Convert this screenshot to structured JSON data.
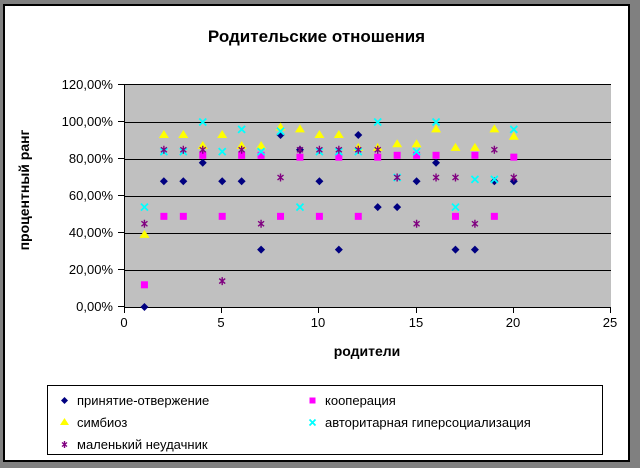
{
  "chart_data": {
    "type": "scatter",
    "title": "Родительские отношения",
    "xlabel": "родители",
    "ylabel": "процентный ранг",
    "xlim": [
      0,
      25
    ],
    "ylim_percent": [
      0,
      120
    ],
    "grid": true,
    "legend_position": "bottom",
    "plot_bg_color": "#C0C0C0",
    "x_ticks": [
      "0",
      "5",
      "10",
      "15",
      "20",
      "25"
    ],
    "y_ticks": [
      "120,00%",
      "100,00%",
      "80,00%",
      "60,00%",
      "40,00%",
      "20,00%",
      "0,00%"
    ],
    "x": [
      1,
      2,
      3,
      4,
      5,
      6,
      7,
      8,
      9,
      10,
      11,
      12,
      13,
      14,
      15,
      16,
      17,
      18,
      19,
      20
    ],
    "series": [
      {
        "name": "принятие-отвержение",
        "marker": "diamond",
        "color": "#000080",
        "values_percent": [
          0,
          68,
          68,
          78,
          68,
          68,
          31,
          93,
          85,
          68,
          31,
          93,
          54,
          54,
          68,
          78,
          31,
          31,
          68,
          68
        ]
      },
      {
        "name": "кооперация",
        "marker": "square",
        "color": "#FF00FF",
        "values_percent": [
          12,
          49,
          49,
          82,
          49,
          82,
          82,
          49,
          81,
          49,
          81,
          49,
          81,
          82,
          82,
          82,
          49,
          82,
          49,
          81
        ]
      },
      {
        "name": "симбиоз",
        "marker": "triangle",
        "color": "#FFFF00",
        "values_percent": [
          39,
          93,
          93,
          87,
          93,
          87,
          87,
          97,
          96,
          93,
          93,
          86,
          86,
          88,
          88,
          96,
          86,
          86,
          96,
          92
        ]
      },
      {
        "name": "авторитарная гиперсоциализация",
        "marker": "x",
        "color": "#00FFFF",
        "values_percent": [
          54,
          84,
          84,
          100,
          84,
          96,
          84,
          95,
          54,
          84,
          84,
          84,
          100,
          70,
          84,
          100,
          54,
          69,
          69,
          96
        ]
      },
      {
        "name": "маленький неудачник",
        "marker": "asterisk",
        "color": "#800080",
        "values_percent": [
          45,
          85,
          85,
          85,
          14,
          85,
          45,
          70,
          85,
          85,
          85,
          85,
          85,
          70,
          45,
          70,
          70,
          45,
          85,
          70
        ]
      }
    ]
  }
}
